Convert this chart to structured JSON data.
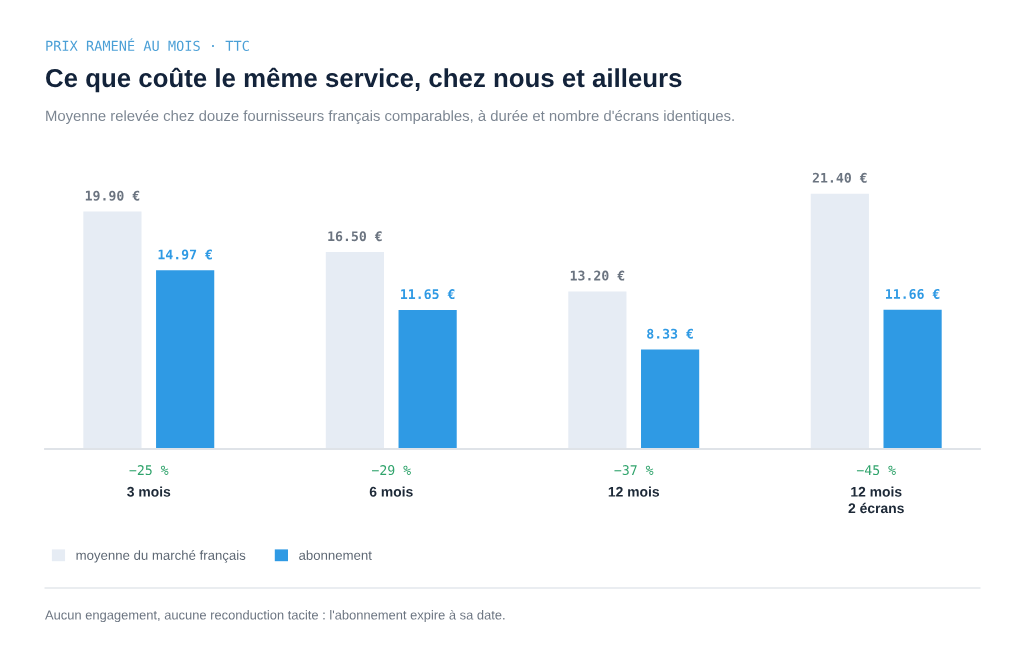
{
  "chart_data": {
    "type": "bar",
    "title": "Ce que coûte le même service, chez nous et ailleurs",
    "subtitle": "Moyenne relevée chez douze fournisseurs français comparables, à durée et nombre d'écrans identiques.",
    "categories": [
      "3 mois",
      "6 mois",
      "12 mois",
      "12 mois\n2 écrans"
    ],
    "series": [
      {
        "name": "moyenne du marché français",
        "color": "#e6ecf4",
        "values": [
          19.9,
          16.5,
          13.2,
          21.4
        ],
        "value_labels": [
          "19.90 €",
          "16.50 €",
          "13.20 €",
          "21.40 €"
        ]
      },
      {
        "name": "abonnement",
        "color": "#2f9ae4",
        "values": [
          14.97,
          11.65,
          8.33,
          11.66
        ],
        "value_labels": [
          "14.97 €",
          "11.65 €",
          "8.33 €",
          "11.66 €"
        ]
      }
    ],
    "tick_labels": "x",
    "grid": false,
    "legend": "bottom left",
    "annotations": [
      "PRIX RAMENÉ AU MOIS · TTC",
      "−25 %",
      "−29 %",
      "−37 %",
      "−45 %",
      "Aucun engagement, aucune reconduction tacite : l'abonnement expire à sa date."
    ]
  }
}
